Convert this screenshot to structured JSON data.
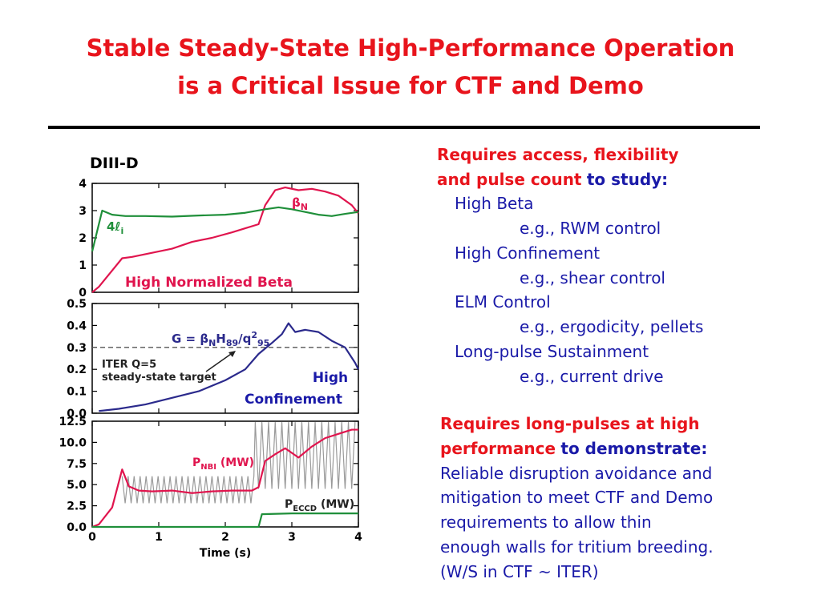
{
  "title": {
    "line1": "Stable Steady-State High-Performance Operation",
    "line2": "is a Critical Issue for CTF and Demo"
  },
  "figure_label": "DIII-D",
  "right_panel": {
    "block1": {
      "heading_red1": "Requires access, flexibility",
      "heading_red2": "and pulse count",
      "heading_blue": "to study:",
      "items": [
        {
          "name": "High Beta",
          "example": "e.g., RWM control"
        },
        {
          "name": "High Confinement",
          "example": "e.g., shear control"
        },
        {
          "name": "ELM Control",
          "example": "e.g., ergodicity, pellets"
        },
        {
          "name": "Long-pulse Sustainment",
          "example": "e.g., current drive"
        }
      ]
    },
    "block2": {
      "heading_red1": "Requires long-pulses at high",
      "heading_red2": "performance",
      "heading_blue": "to demonstrate:",
      "lines": [
        "Reliable disruption avoidance and",
        "mitigation to meet CTF and Demo",
        "requirements to allow thin",
        "enough walls for tritium breeding.",
        "(W/S in CTF ~ ITER)"
      ]
    }
  },
  "colors": {
    "title": "#e8141c",
    "text_blue": "#1a1aa8",
    "trace_red": "#e0154e",
    "trace_green": "#1f8f3a",
    "trace_navy": "#2b2a8c",
    "trace_gray": "#9a9a9a",
    "target_line": "#555555"
  },
  "chart_data": [
    {
      "type": "line",
      "panel": "top",
      "xlim": [
        0,
        4
      ],
      "ylim": [
        0,
        4
      ],
      "yticks": [
        "0",
        "1",
        "2",
        "3",
        "4"
      ],
      "annotation": "High Normalized Beta",
      "series": [
        {
          "name": "βN",
          "color": "#e0154e",
          "x": [
            0,
            0.1,
            0.3,
            0.45,
            0.6,
            0.9,
            1.2,
            1.5,
            1.8,
            2.1,
            2.3,
            2.5,
            2.6,
            2.75,
            2.9,
            3.1,
            3.3,
            3.5,
            3.7,
            3.9,
            4.0
          ],
          "y": [
            0,
            0.2,
            0.8,
            1.25,
            1.3,
            1.45,
            1.6,
            1.85,
            2.0,
            2.2,
            2.35,
            2.5,
            3.2,
            3.75,
            3.85,
            3.75,
            3.8,
            3.7,
            3.55,
            3.2,
            2.9
          ]
        },
        {
          "name": "4ℓi",
          "color": "#1f8f3a",
          "x": [
            0,
            0.08,
            0.15,
            0.3,
            0.5,
            0.8,
            1.2,
            1.6,
            2.0,
            2.3,
            2.6,
            2.8,
            3.0,
            3.2,
            3.4,
            3.6,
            3.8,
            4.0
          ],
          "y": [
            1.5,
            2.3,
            3.0,
            2.85,
            2.8,
            2.8,
            2.78,
            2.82,
            2.85,
            2.92,
            3.05,
            3.12,
            3.05,
            2.95,
            2.85,
            2.8,
            2.88,
            2.95
          ]
        }
      ]
    },
    {
      "type": "line",
      "panel": "middle",
      "xlim": [
        0,
        4
      ],
      "ylim": [
        0,
        0.5
      ],
      "yticks": [
        "0.0",
        "0.1",
        "0.2",
        "0.3",
        "0.4",
        "0.5"
      ],
      "annotations": [
        "G = βNH89/q295",
        "ITER Q=5",
        "steady-state target",
        "High",
        "Confinement"
      ],
      "target": 0.3,
      "series": [
        {
          "name": "G",
          "color": "#2b2a8c",
          "x": [
            0.1,
            0.4,
            0.8,
            1.2,
            1.6,
            2.0,
            2.3,
            2.5,
            2.7,
            2.85,
            2.95,
            3.05,
            3.2,
            3.4,
            3.6,
            3.8,
            3.95,
            4.0
          ],
          "y": [
            0.01,
            0.02,
            0.04,
            0.07,
            0.1,
            0.15,
            0.2,
            0.27,
            0.32,
            0.36,
            0.41,
            0.37,
            0.38,
            0.37,
            0.33,
            0.3,
            0.23,
            0.2
          ]
        }
      ]
    },
    {
      "type": "line",
      "panel": "bottom",
      "xlabel": "Time (s)",
      "xlim": [
        0,
        4
      ],
      "xticks": [
        "0",
        "1",
        "2",
        "3",
        "4"
      ],
      "ylim": [
        0,
        12.5
      ],
      "yticks": [
        "0.0",
        "2.5",
        "5.0",
        "7.5",
        "10.0",
        "12.5"
      ],
      "series": [
        {
          "name": "PNBI (MW)",
          "color": "#e0154e",
          "x": [
            0,
            0.1,
            0.3,
            0.45,
            0.55,
            0.7,
            0.9,
            1.2,
            1.5,
            1.8,
            2.1,
            2.4,
            2.5,
            2.6,
            2.75,
            2.9,
            3.1,
            3.3,
            3.5,
            3.7,
            3.9,
            4.0
          ],
          "y": [
            0,
            0.3,
            2.3,
            6.8,
            4.8,
            4.3,
            4.2,
            4.3,
            4.0,
            4.2,
            4.3,
            4.3,
            4.7,
            7.8,
            8.6,
            9.3,
            8.2,
            9.5,
            10.5,
            11.0,
            11.5,
            11.5
          ]
        },
        {
          "name": "PECCD (MW)",
          "color": "#1f8f3a",
          "x": [
            0,
            2.5,
            2.55,
            3.0,
            3.5,
            4.0
          ],
          "y": [
            0,
            0,
            1.5,
            1.6,
            1.6,
            1.6
          ]
        }
      ]
    }
  ]
}
